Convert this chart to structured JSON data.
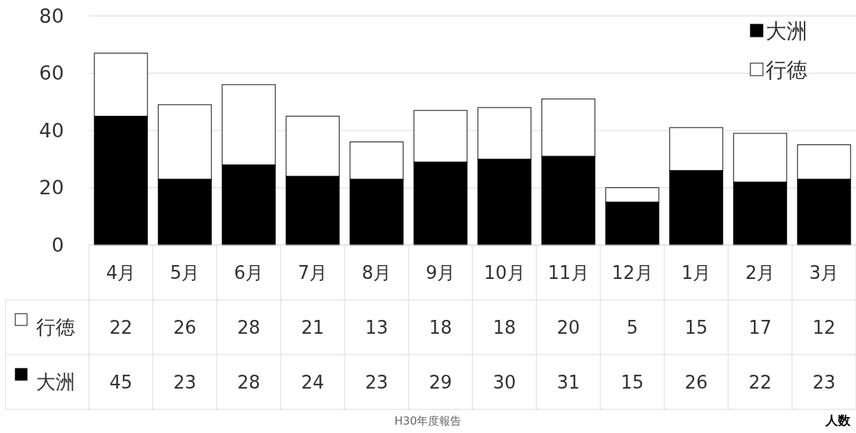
{
  "chart_data": {
    "type": "bar",
    "stacked": true,
    "categories": [
      "4月",
      "5月",
      "6月",
      "7月",
      "8月",
      "9月",
      "10月",
      "11月",
      "12月",
      "1月",
      "2月",
      "3月"
    ],
    "series": [
      {
        "name": "大洲",
        "color": "#000000",
        "values": [
          45,
          23,
          28,
          24,
          23,
          29,
          30,
          31,
          15,
          26,
          22,
          23
        ]
      },
      {
        "name": "行徳",
        "color": "#ffffff",
        "values": [
          22,
          26,
          28,
          21,
          13,
          18,
          18,
          20,
          5,
          15,
          17,
          12
        ]
      }
    ],
    "ylim": [
      0,
      80
    ],
    "yticks": [
      0,
      20,
      40,
      60,
      80
    ],
    "grid": "y",
    "legend": "top right",
    "data_labels": true,
    "annotations": [
      "H30年度報告",
      "人数"
    ]
  }
}
